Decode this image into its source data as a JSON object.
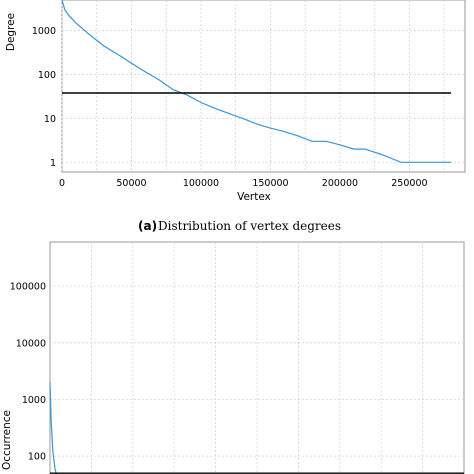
{
  "chart_data": [
    {
      "type": "line",
      "caption_tag": "(a)",
      "caption": "Distribution of vertex degrees",
      "xlabel": "Vertex",
      "ylabel": "Degree",
      "xscale": "linear",
      "yscale": "log",
      "xlim": [
        0,
        290000
      ],
      "ylim": [
        0.6,
        5000
      ],
      "xticks": [
        0,
        50000,
        100000,
        150000,
        200000,
        250000
      ],
      "yticks": [
        1,
        10,
        100,
        1000
      ],
      "grid": true,
      "series": [
        {
          "color": "#3a95d5",
          "x": [
            0,
            2000,
            5000,
            10000,
            20000,
            30000,
            40000,
            50000,
            60000,
            70000,
            80000,
            90000,
            100000,
            110000,
            120000,
            130000,
            140000,
            150000,
            160000,
            170000,
            180000,
            190000,
            200000,
            210000,
            218000,
            230000,
            244000,
            250000,
            280000
          ],
          "y": [
            5000,
            3000,
            2200,
            1500,
            800,
            450,
            290,
            180,
            115,
            75,
            45,
            34,
            23,
            17,
            13,
            10,
            7.5,
            6,
            5,
            4,
            3,
            3,
            2.5,
            2,
            2,
            1.5,
            1,
            1,
            1
          ]
        },
        {
          "color": "#000000",
          "x": [
            0,
            280000
          ],
          "y": [
            38,
            38
          ]
        }
      ]
    },
    {
      "type": "line",
      "xlabel": "",
      "ylabel": "Occurrence",
      "yscale": "log",
      "ylim": [
        35,
        600000
      ],
      "yticks": [
        100,
        1000,
        10000,
        100000
      ],
      "grid": true,
      "series": [
        {
          "color": "#3a95d5",
          "x": [
            0,
            0.003,
            0.007,
            0.012,
            0.02
          ],
          "y": [
            2000,
            400,
            120,
            60,
            35
          ]
        },
        {
          "color": "#000000",
          "x": [
            0,
            1
          ],
          "y": [
            50,
            50
          ]
        }
      ]
    }
  ]
}
